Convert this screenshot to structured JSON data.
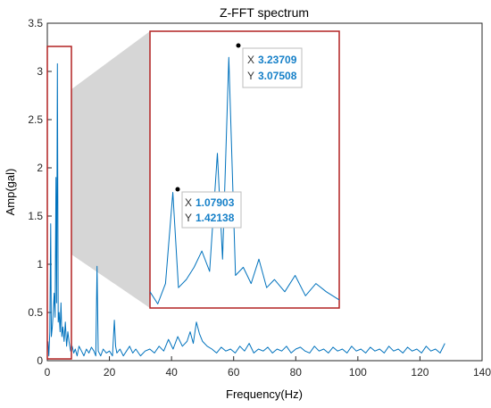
{
  "chart_data": {
    "type": "line",
    "title": "Z-FFT spectrum",
    "xlabel": "Frequency(Hz)",
    "ylabel": "Amp(gal)",
    "xlim": [
      0,
      140
    ],
    "ylim": [
      0,
      3.5
    ],
    "xticks": [
      0,
      20,
      40,
      60,
      80,
      100,
      120,
      140
    ],
    "yticks": [
      0,
      0.5,
      1,
      1.5,
      2,
      2.5,
      3,
      3.5
    ],
    "grid": false,
    "line_color": "#0072BD",
    "highlight_color": "#B22222",
    "series": [
      {
        "x": [
          0.2,
          0.5,
          0.8,
          1.08,
          1.3,
          1.6,
          1.9,
          2.2,
          2.5,
          2.8,
          3.0,
          3.24,
          3.5,
          3.8,
          4.1,
          4.4,
          4.7,
          5.0,
          5.4,
          5.8,
          6.2,
          6.6,
          7.0,
          7.5,
          8.0,
          8.5,
          9.0,
          9.6,
          10.2,
          11.0,
          11.8,
          12.6,
          13.4,
          14.2,
          15.0,
          15.6,
          16.0,
          16.4,
          17.2,
          18.0,
          19.0,
          20.0,
          21.0,
          21.6,
          22.0,
          22.4,
          23.4,
          24.5,
          25.5,
          26.5,
          27.5,
          28.5,
          30.0,
          31.5,
          33.0,
          34.5,
          36.0,
          37.5,
          39.0,
          40.5,
          42.0,
          43.5,
          45.0,
          46.0,
          47.0,
          48.0,
          49.0,
          50.0,
          51.5,
          53.0,
          54.5,
          56.0,
          57.5,
          59.0,
          60.5,
          62.0,
          63.5,
          65.0,
          66.5,
          68.0,
          69.5,
          71.0,
          72.5,
          74.0,
          75.5,
          77.0,
          78.5,
          80.0,
          81.5,
          83.0,
          84.5,
          86.0,
          87.5,
          89.0,
          90.5,
          92.0,
          93.5,
          95.0,
          96.5,
          98.0,
          99.5,
          101.0,
          102.5,
          104.0,
          105.5,
          107.0,
          108.5,
          110.0,
          111.5,
          113.0,
          114.5,
          116.0,
          117.5,
          119.0,
          120.5,
          122.0,
          123.5,
          125.0,
          126.5,
          128.0
        ],
        "y": [
          0.2,
          0.05,
          0.3,
          1.42,
          0.25,
          0.35,
          0.5,
          0.7,
          0.45,
          1.9,
          0.6,
          3.08,
          0.4,
          0.5,
          0.3,
          0.6,
          0.25,
          0.35,
          0.2,
          0.4,
          0.15,
          0.3,
          0.2,
          0.1,
          0.15,
          0.08,
          0.12,
          0.05,
          0.15,
          0.1,
          0.05,
          0.12,
          0.08,
          0.14,
          0.1,
          0.05,
          0.98,
          0.1,
          0.05,
          0.12,
          0.08,
          0.1,
          0.05,
          0.42,
          0.15,
          0.08,
          0.12,
          0.05,
          0.1,
          0.15,
          0.08,
          0.12,
          0.05,
          0.1,
          0.12,
          0.08,
          0.15,
          0.1,
          0.22,
          0.12,
          0.25,
          0.15,
          0.2,
          0.3,
          0.18,
          0.4,
          0.28,
          0.2,
          0.15,
          0.12,
          0.08,
          0.14,
          0.1,
          0.12,
          0.08,
          0.15,
          0.1,
          0.18,
          0.08,
          0.12,
          0.1,
          0.14,
          0.08,
          0.12,
          0.1,
          0.15,
          0.08,
          0.12,
          0.14,
          0.1,
          0.08,
          0.15,
          0.1,
          0.12,
          0.08,
          0.14,
          0.1,
          0.12,
          0.08,
          0.15,
          0.1,
          0.12,
          0.08,
          0.14,
          0.1,
          0.12,
          0.08,
          0.15,
          0.1,
          0.12,
          0.08,
          0.14,
          0.1,
          0.12,
          0.08,
          0.15,
          0.1,
          0.12,
          0.08,
          0.18
        ]
      }
    ],
    "zoom_inset": {
      "x_range": [
        0.2,
        7.5
      ],
      "datatips": [
        {
          "x_label": "X",
          "x_value": "3.23709",
          "y_label": "Y",
          "y_value": "3.07508"
        },
        {
          "x_label": "X",
          "x_value": "1.07903",
          "y_label": "Y",
          "y_value": "1.42138"
        }
      ]
    }
  }
}
